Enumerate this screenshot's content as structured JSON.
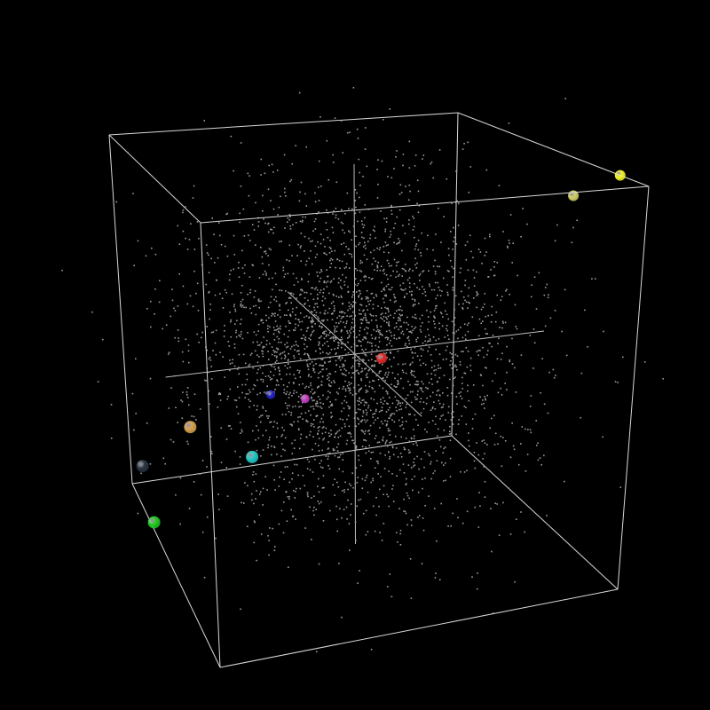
{
  "chart_data": {
    "type": "scatter",
    "projection": "3d-perspective",
    "background": "#000000",
    "box_color": "#ffffff",
    "point_color": "#9a9a9a",
    "axis_ranges": {
      "x": [
        -1,
        1
      ],
      "y": [
        -1,
        1
      ],
      "z": [
        -1,
        1
      ]
    },
    "cloud": {
      "description_count": 3000,
      "distribution": "gaussian",
      "center": [
        0,
        0,
        0
      ],
      "spread": 0.42
    },
    "highlighted_points": [
      {
        "color": "#d2d26a",
        "xyz": [
          0.78,
          -0.92,
          0.72
        ],
        "radius": 6
      },
      {
        "color": "#f5f52a",
        "xyz": [
          1.0,
          -1.0,
          0.7
        ],
        "radius": 6
      },
      {
        "color": "#2424c8",
        "xyz": [
          -0.37,
          0.26,
          -0.26
        ],
        "radius": 5
      },
      {
        "color": "#c83cc8",
        "xyz": [
          -0.25,
          0.22,
          -0.05
        ],
        "radius": 5
      },
      {
        "color": "#e02828",
        "xyz": [
          0.34,
          0.24,
          -0.5
        ],
        "radius": 6
      },
      {
        "color": "#23c8c8",
        "xyz": [
          -0.63,
          0.35,
          0.27
        ],
        "radius": 7
      },
      {
        "color": "#d8a050",
        "xyz": [
          -0.95,
          0.15,
          0.3
        ],
        "radius": 7
      },
      {
        "color": "#2a3440",
        "xyz": [
          -1.25,
          0.21,
          0.55
        ],
        "radius": 7
      },
      {
        "color": "#22c822",
        "xyz": [
          -1.2,
          0.5,
          0.5
        ],
        "radius": 7
      }
    ],
    "grid": false,
    "legend": "none"
  }
}
